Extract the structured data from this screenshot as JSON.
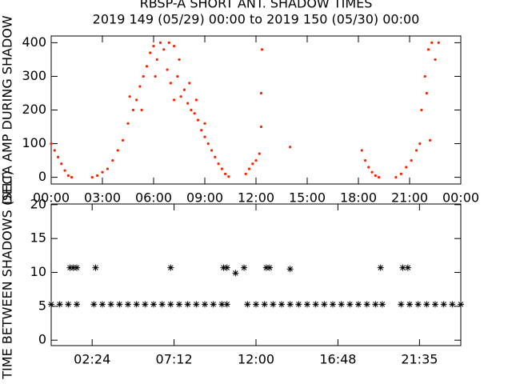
{
  "title": "RBSP-A SHORT ANT. SHADOW TIMES",
  "subtitle": "2019 149 (05/29) 00:00 to 2019 150 (05/30) 00:00",
  "chart_data": [
    {
      "type": "scatter",
      "ylabel": "DELTA AMP DURING SHADOW",
      "marker": "dot",
      "color": "#ff2000",
      "xlim": [
        0,
        24
      ],
      "ylim": [
        -20,
        420
      ],
      "xticks": [
        {
          "value": 0,
          "label": "00:00"
        },
        {
          "value": 3,
          "label": "03:00"
        },
        {
          "value": 6,
          "label": "06:00"
        },
        {
          "value": 9,
          "label": "09:00"
        },
        {
          "value": 12,
          "label": "12:00"
        },
        {
          "value": 15,
          "label": "15:00"
        },
        {
          "value": 18,
          "label": "18:00"
        },
        {
          "value": 21,
          "label": "21:00"
        },
        {
          "value": 24,
          "label": "00:00"
        }
      ],
      "yticks": [
        0,
        100,
        200,
        300,
        400
      ],
      "x": [
        0,
        0.2,
        0.4,
        0.6,
        0.8,
        1.0,
        1.2,
        2.4,
        2.7,
        3.0,
        3.3,
        3.6,
        3.9,
        4.2,
        4.5,
        4.8,
        5.0,
        5.2,
        5.4,
        5.6,
        5.8,
        6.0,
        6.2,
        6.4,
        6.6,
        6.8,
        7.0,
        7.2,
        7.4,
        7.6,
        7.8,
        8.0,
        8.2,
        8.4,
        8.6,
        8.8,
        9.0,
        9.2,
        9.4,
        9.6,
        9.8,
        10.0,
        10.2,
        10.4,
        4.6,
        5.3,
        6.1,
        6.9,
        7.5,
        8.1,
        8.5,
        9.0,
        7.2,
        11.4,
        11.6,
        11.8,
        12.0,
        12.2,
        12.3,
        12.3,
        12.35,
        14.0,
        18.2,
        18.4,
        18.6,
        18.8,
        19.0,
        19.2,
        20.2,
        20.5,
        20.8,
        21.1,
        21.4,
        21.6,
        21.7,
        21.9,
        22.1,
        22.3,
        22.5,
        22.7,
        22.0,
        22.2
      ],
      "values": [
        100,
        80,
        60,
        40,
        20,
        5,
        0,
        0,
        5,
        15,
        25,
        50,
        80,
        110,
        160,
        200,
        230,
        270,
        300,
        330,
        370,
        390,
        350,
        400,
        380,
        320,
        280,
        390,
        300,
        240,
        260,
        220,
        200,
        190,
        170,
        140,
        120,
        100,
        80,
        60,
        40,
        25,
        10,
        2,
        240,
        200,
        300,
        400,
        350,
        280,
        230,
        160,
        230,
        10,
        25,
        40,
        50,
        70,
        150,
        250,
        380,
        90,
        80,
        50,
        30,
        15,
        5,
        0,
        0,
        10,
        30,
        50,
        80,
        100,
        200,
        300,
        380,
        400,
        350,
        400,
        250,
        110
      ]
    },
    {
      "type": "scatter",
      "ylabel": "TIME BETWEEN SHADOWS (SEC)",
      "marker": "asterisk",
      "color": "#000000",
      "xlim": [
        0,
        24
      ],
      "ylim": [
        -0.8,
        20.1
      ],
      "xticks": [
        {
          "value": 2.4,
          "label": "02:24"
        },
        {
          "value": 7.2,
          "label": "07:12"
        },
        {
          "value": 12,
          "label": "12:00"
        },
        {
          "value": 16.8,
          "label": "16:48"
        },
        {
          "value": 21.58,
          "label": "21:35"
        }
      ],
      "yticks": [
        0,
        5,
        10,
        15,
        20
      ],
      "x": [
        0,
        0.5,
        1,
        1.5,
        2.5,
        3,
        3.5,
        4,
        4.5,
        5,
        5.5,
        6,
        6.5,
        7,
        7.5,
        8,
        8.5,
        9,
        9.5,
        10,
        10.3,
        11.5,
        12,
        12.5,
        13,
        13.5,
        14,
        14.5,
        15,
        15.5,
        16,
        16.5,
        17,
        17.5,
        18,
        18.5,
        19,
        19.4,
        20.5,
        21,
        21.5,
        22,
        22.5,
        23,
        23.5,
        24,
        1.1,
        1.3,
        1.5,
        2.6,
        7.0,
        10.1,
        10.3,
        10.8,
        11.3,
        12.6,
        12.8,
        14.0,
        19.3,
        20.6,
        20.9
      ],
      "values": [
        5.3,
        5.3,
        5.3,
        5.3,
        5.3,
        5.3,
        5.3,
        5.3,
        5.3,
        5.3,
        5.3,
        5.3,
        5.3,
        5.3,
        5.3,
        5.3,
        5.3,
        5.3,
        5.3,
        5.3,
        5.3,
        5.3,
        5.3,
        5.3,
        5.3,
        5.3,
        5.3,
        5.3,
        5.3,
        5.3,
        5.3,
        5.3,
        5.3,
        5.3,
        5.3,
        5.3,
        5.3,
        5.3,
        5.3,
        5.3,
        5.3,
        5.3,
        5.3,
        5.3,
        5.3,
        5.3,
        10.7,
        10.7,
        10.7,
        10.7,
        10.7,
        10.7,
        10.7,
        9.9,
        10.7,
        10.7,
        10.7,
        10.5,
        10.7,
        10.7,
        10.7
      ]
    }
  ]
}
